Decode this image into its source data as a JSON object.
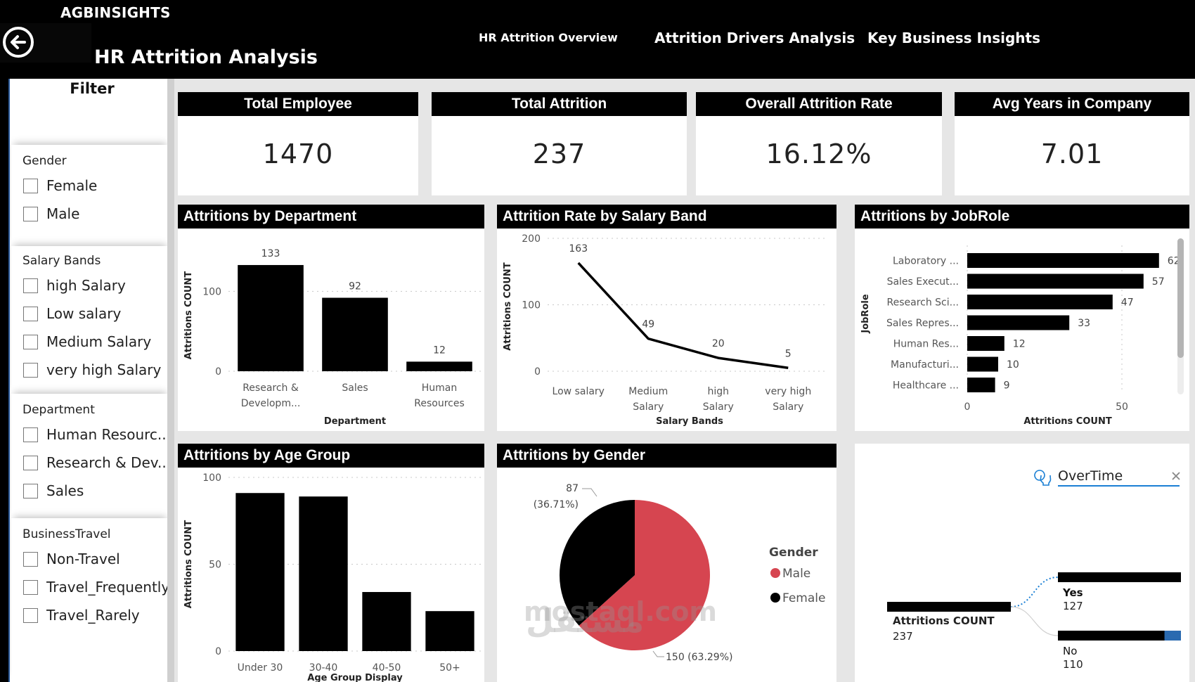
{
  "header": {
    "brand": "AGBINSIGHTS",
    "title": "HR Attrition Analysis",
    "back_icon": "arrow-left-circle-icon",
    "nav": [
      {
        "label": "HR Attrition Overview"
      },
      {
        "label": "Attrition Drivers Analysis"
      },
      {
        "label": "Key Business Insights"
      }
    ]
  },
  "filters": {
    "title": "Filter",
    "slicers": [
      {
        "title": "Gender",
        "items": [
          "Female",
          "Male"
        ]
      },
      {
        "title": "Salary Bands",
        "items": [
          "high Salary",
          "Low salary",
          "Medium Salary",
          "very high Salary"
        ]
      },
      {
        "title": "Department",
        "items": [
          "Human Resourc...",
          "Research & Dev...",
          "Sales"
        ]
      },
      {
        "title": "BusinessTravel",
        "items": [
          "Non-Travel",
          "Travel_Frequently",
          "Travel_Rarely"
        ]
      }
    ]
  },
  "kpis": [
    {
      "label": "Total Employee",
      "value": "1470"
    },
    {
      "label": "Total Attrition",
      "value": "237"
    },
    {
      "label": "Overall Attrition Rate",
      "value": "16.12%"
    },
    {
      "label": "Avg Years in Company",
      "value": "7.01"
    }
  ],
  "colors": {
    "bar": "#000000",
    "male": "#d64550",
    "female": "#000000",
    "accent_blue": "#1a7fd4"
  },
  "chart_data": [
    {
      "id": "dept",
      "type": "bar",
      "title": "Attritions by Department",
      "categories": [
        "Research & Developm...",
        "Sales",
        "Human Resources"
      ],
      "category_lines": [
        [
          "Research &",
          "Developm..."
        ],
        [
          "Sales"
        ],
        [
          "Human",
          "Resources"
        ]
      ],
      "values": [
        133,
        92,
        12
      ],
      "xlabel": "Department",
      "ylabel": "Attritions COUNT",
      "yticks": [
        0,
        100
      ],
      "ylim": [
        0,
        140
      ],
      "data_labels": true,
      "grid": true
    },
    {
      "id": "salary",
      "type": "line",
      "title": "Attrition Rate by Salary Band",
      "categories": [
        "Low salary",
        "Medium Salary",
        "high Salary",
        "very high Salary"
      ],
      "category_lines": [
        [
          "Low salary"
        ],
        [
          "Medium",
          "Salary"
        ],
        [
          "high",
          "Salary"
        ],
        [
          "very high",
          "Salary"
        ]
      ],
      "values": [
        163,
        49,
        20,
        5
      ],
      "xlabel": "Salary Bands",
      "ylabel": "Attritions COUNT",
      "yticks": [
        0,
        100,
        200
      ],
      "ylim": [
        0,
        200
      ],
      "data_labels": true,
      "grid": true
    },
    {
      "id": "jobrole",
      "type": "bar",
      "orientation": "horizontal",
      "title": "Attritions by JobRole",
      "categories": [
        "Laboratory ...",
        "Sales Execut...",
        "Research Sci...",
        "Sales Repres...",
        "Human Res...",
        "Manufacturi...",
        "Healthcare ..."
      ],
      "values": [
        62,
        57,
        47,
        33,
        12,
        10,
        9
      ],
      "xlabel": "Attritions COUNT",
      "ylabel": "JobRole",
      "xticks": [
        0,
        50
      ],
      "xlim": [
        0,
        65
      ],
      "data_labels": true,
      "grid": true
    },
    {
      "id": "age",
      "type": "bar",
      "title": "Attritions by Age Group",
      "categories": [
        "Under 30",
        "30-40",
        "40-50",
        "50+"
      ],
      "values": [
        91,
        89,
        34,
        23
      ],
      "xlabel": "Age Group Display",
      "ylabel": "Attritions COUNT",
      "yticks": [
        0,
        50,
        100
      ],
      "ylim": [
        0,
        100
      ],
      "data_labels": false,
      "grid": true
    },
    {
      "id": "gender",
      "type": "pie",
      "title": "Attritions by Gender",
      "slices": [
        {
          "label": "Male",
          "value": 150,
          "percent": "63.29%",
          "data_label": "150 (63.29%)"
        },
        {
          "label": "Female",
          "value": 87,
          "percent": "36.71%",
          "data_label_line1": "87",
          "data_label_line2": "(36.71%)"
        }
      ],
      "legend_title": "Gender",
      "legend": [
        "Male",
        "Female"
      ],
      "legend_position": "right"
    },
    {
      "id": "overtime",
      "type": "decomposition-tree",
      "title": "",
      "root": {
        "label": "Attritions COUNT",
        "value": 237
      },
      "split_field": "OverTime",
      "children": [
        {
          "label": "Yes",
          "value": 127
        },
        {
          "label": "No",
          "value": 110
        }
      ]
    }
  ],
  "watermark": {
    "latin": "mostaql.com",
    "arabic": "مستقل"
  }
}
